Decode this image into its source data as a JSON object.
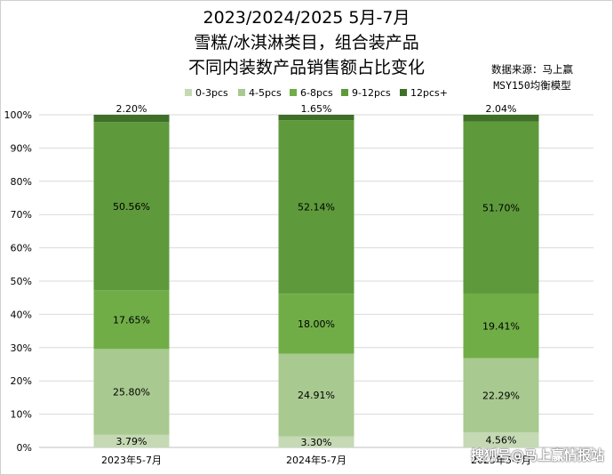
{
  "title_lines": [
    "2023/2024/2025 5月-7月",
    "雪糕/冰淇淋类目，组合装产品",
    "不同内装数产品销售额占比变化"
  ],
  "source_lines": [
    "数据来源：马上赢",
    "MSY150均衡模型"
  ],
  "watermark": "搜狐号@马上赢情报站",
  "chart_data": {
    "type": "bar",
    "stacked": true,
    "categories": [
      "2023年5-7月",
      "2024年5-7月",
      "2025年5-7月"
    ],
    "series": [
      {
        "name": "0-3pcs",
        "color": "#c5d9b4",
        "values": [
          3.79,
          3.3,
          4.56
        ]
      },
      {
        "name": "4-5pcs",
        "color": "#a8c98f",
        "values": [
          25.8,
          24.91,
          22.29
        ]
      },
      {
        "name": "6-8pcs",
        "color": "#70ad47",
        "values": [
          17.65,
          18.0,
          19.41
        ]
      },
      {
        "name": "9-12pcs",
        "color": "#5e9a3b",
        "values": [
          50.56,
          52.14,
          51.7
        ]
      },
      {
        "name": "12pcs+",
        "color": "#3f7028",
        "values": [
          2.2,
          1.65,
          2.04
        ]
      }
    ],
    "y_ticks": [
      "0%",
      "10%",
      "20%",
      "30%",
      "40%",
      "50%",
      "60%",
      "70%",
      "80%",
      "90%",
      "100%"
    ],
    "ylim": [
      0,
      100
    ],
    "y_unit": "%",
    "grid": true,
    "legend_position": "top"
  }
}
